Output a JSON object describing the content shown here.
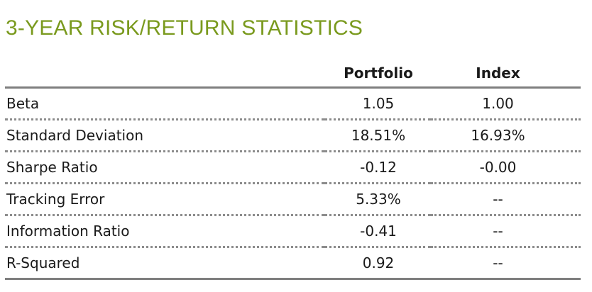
{
  "title": "3-YEAR RISK/RETURN STATISTICS",
  "colors": {
    "title": "#7a9a1e",
    "rule": "#7f7f7f"
  },
  "table": {
    "headers": {
      "label": "",
      "portfolio": "Portfolio",
      "index": "Index"
    },
    "rows": [
      {
        "label": "Beta",
        "portfolio": "1.05",
        "index": "1.00"
      },
      {
        "label": "Standard Deviation",
        "portfolio": "18.51%",
        "index": "16.93%"
      },
      {
        "label": "Sharpe Ratio",
        "portfolio": "-0.12",
        "index": "-0.00"
      },
      {
        "label": "Tracking Error",
        "portfolio": "5.33%",
        "index": "--"
      },
      {
        "label": "Information Ratio",
        "portfolio": "-0.41",
        "index": "--"
      },
      {
        "label": "R-Squared",
        "portfolio": "0.92",
        "index": "--"
      }
    ]
  }
}
